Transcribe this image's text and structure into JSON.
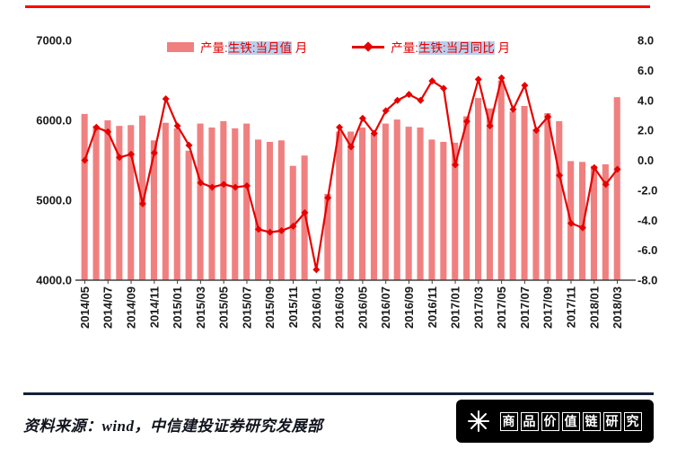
{
  "colors": {
    "bar": "#f08080",
    "line": "#e60000",
    "axis_text": "#1a1a1a",
    "rule_top": "#ff0000",
    "rule_bottom": "#132039",
    "legend_text": "#e60000",
    "legend_highlight_bg": "#b9d0ee",
    "badge_bg": "#000000",
    "badge_text": "#ffffff"
  },
  "chart_data": {
    "type": "bar",
    "title": "",
    "grid": false,
    "legend_position": "top-center",
    "x_label_every": 2,
    "categories": [
      "2014/05",
      "2014/06",
      "2014/07",
      "2014/08",
      "2014/09",
      "2014/10",
      "2014/11",
      "2014/12",
      "2015/01",
      "2015/02",
      "2015/03",
      "2015/04",
      "2015/05",
      "2015/06",
      "2015/07",
      "2015/08",
      "2015/09",
      "2015/10",
      "2015/11",
      "2015/12",
      "2016/01",
      "2016/02",
      "2016/03",
      "2016/04",
      "2016/05",
      "2016/06",
      "2016/07",
      "2016/08",
      "2016/09",
      "2016/10",
      "2016/11",
      "2016/12",
      "2017/01",
      "2017/02",
      "2017/03",
      "2017/04",
      "2017/05",
      "2017/06",
      "2017/07",
      "2017/08",
      "2017/09",
      "2017/10",
      "2017/11",
      "2017/12",
      "2018/01",
      "2018/02",
      "2018/03"
    ],
    "series": [
      {
        "name": "产量:生铁:当月值 月",
        "chart": "bar",
        "axis": "left",
        "color": "#f08080",
        "values": [
          6080,
          5930,
          6000,
          5930,
          5940,
          6060,
          5750,
          5970,
          5900,
          5620,
          5960,
          5910,
          5990,
          5900,
          5960,
          5760,
          5730,
          5750,
          5430,
          5560,
          null,
          5080,
          5860,
          5860,
          5910,
          5840,
          5960,
          6010,
          5920,
          5910,
          5760,
          5730,
          5720,
          6050,
          6280,
          6150,
          6500,
          6110,
          6180,
          5890,
          6090,
          5990,
          5490,
          5480,
          5430,
          5450,
          6290
        ]
      },
      {
        "name": "产量:生铁:当月同比 月",
        "chart": "line",
        "axis": "right",
        "color": "#e60000",
        "values": [
          0.0,
          2.2,
          1.9,
          0.2,
          0.4,
          -2.9,
          0.5,
          4.1,
          2.3,
          1.0,
          -1.5,
          -1.8,
          -1.6,
          -1.8,
          -1.7,
          -4.6,
          -4.8,
          -4.7,
          -4.4,
          -3.5,
          -7.3,
          -2.5,
          2.2,
          0.9,
          2.8,
          1.8,
          3.3,
          4.0,
          4.4,
          4.0,
          5.3,
          4.8,
          -0.3,
          2.6,
          5.4,
          2.3,
          5.5,
          3.4,
          5.0,
          2.0,
          2.9,
          -1.0,
          -4.2,
          -4.5,
          -0.5,
          -1.6,
          -0.6
        ]
      }
    ],
    "left_axis": {
      "min": 4000,
      "max": 7000,
      "tick_step": 1000,
      "tick_labels": [
        "4000.0",
        "5000.0",
        "6000.0",
        "7000.0"
      ]
    },
    "right_axis": {
      "min": -8,
      "max": 8,
      "tick_step": 2,
      "tick_labels": [
        "-8.0",
        "-6.0",
        "-4.0",
        "-2.0",
        "0.0",
        "2.0",
        "4.0",
        "6.0",
        "8.0"
      ]
    },
    "legend": [
      {
        "prefix": "产量:",
        "highlight": "生铁:当月值",
        "suffix": " 月",
        "swatch": "bar"
      },
      {
        "prefix": "产量:",
        "highlight": "生铁:当月同比",
        "suffix": " 月",
        "swatch": "line"
      }
    ]
  },
  "footer": {
    "source_text": "资料来源：wind，中信建投证券研究发展部",
    "badge": {
      "logo": "starburst-icon",
      "text": "商品价值链研究"
    }
  }
}
